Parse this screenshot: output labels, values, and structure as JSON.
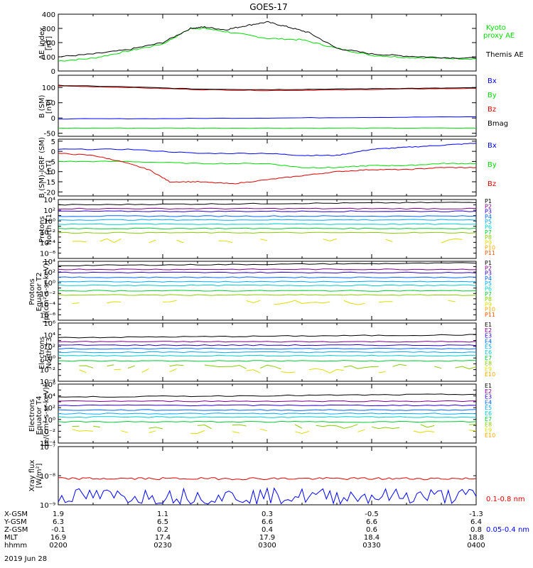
{
  "title": "GOES-17",
  "colors": {
    "black": "#000000",
    "green": "#00dd00",
    "blue": "#0000ff",
    "red": "#dd0000",
    "p_colors": [
      "#000000",
      "#7a0088",
      "#2a00cc",
      "#0066ff",
      "#00aaff",
      "#00cccc",
      "#00cc33",
      "#88cc00",
      "#dddd00",
      "#ffaa00",
      "#ff5500",
      "#dd0000"
    ]
  },
  "chart_data": [
    {
      "type": "line",
      "ylabel": "AE_index [nT]",
      "ylim": [
        0,
        400
      ],
      "yticks": [
        "0",
        "100",
        "200",
        "300",
        "400"
      ],
      "xlim_minutes": [
        0,
        120
      ],
      "series": [
        {
          "name": "Kyoto proxy AE",
          "color": "green",
          "x": [
            0,
            10,
            20,
            30,
            38,
            42,
            50,
            60,
            70,
            80,
            90,
            100,
            110,
            120
          ],
          "values": [
            70,
            90,
            140,
            190,
            300,
            300,
            270,
            230,
            220,
            160,
            110,
            95,
            90,
            85
          ]
        },
        {
          "name": "Themis AE",
          "color": "black",
          "x": [
            0,
            10,
            20,
            30,
            38,
            42,
            48,
            54,
            60,
            66,
            72,
            80,
            90,
            100,
            110,
            120
          ],
          "values": [
            100,
            120,
            150,
            200,
            300,
            310,
            290,
            320,
            345,
            310,
            270,
            160,
            120,
            105,
            95,
            90
          ]
        }
      ]
    },
    {
      "type": "line",
      "ylabel": "B (SM) [nT]",
      "ylim": [
        -60,
        140
      ],
      "yticks": [
        "-50",
        "0",
        "50",
        "100"
      ],
      "series": [
        {
          "name": "Bx",
          "color": "blue",
          "x": [
            0,
            30,
            60,
            90,
            120
          ],
          "values": [
            -3,
            -2,
            0,
            2,
            4
          ]
        },
        {
          "name": "By",
          "color": "green",
          "x": [
            0,
            30,
            60,
            90,
            120
          ],
          "values": [
            -33,
            -33,
            -33,
            -33,
            -33
          ]
        },
        {
          "name": "Bz",
          "color": "red",
          "x": [
            0,
            20,
            40,
            60,
            80,
            100,
            120
          ],
          "values": [
            105,
            100,
            93,
            90,
            92,
            95,
            97
          ]
        },
        {
          "name": "Bmag",
          "color": "black",
          "x": [
            0,
            20,
            40,
            60,
            80,
            100,
            120
          ],
          "values": [
            107,
            102,
            95,
            93,
            95,
            97,
            99
          ]
        }
      ]
    },
    {
      "type": "line",
      "ylabel": "B (SM)-IGRF (SM) [nT]",
      "ylim": [
        -22,
        6
      ],
      "yticks": [
        "-20",
        "-15",
        "-10",
        "-5",
        "0",
        "5"
      ],
      "series": [
        {
          "name": "Bx",
          "color": "blue",
          "x": [
            0,
            20,
            40,
            60,
            70,
            80,
            90,
            100,
            110,
            120
          ],
          "values": [
            1,
            1,
            -1,
            -1,
            -2,
            -2,
            1,
            2,
            3,
            4
          ]
        },
        {
          "name": "By",
          "color": "green",
          "x": [
            0,
            20,
            40,
            60,
            70,
            80,
            90,
            100,
            110,
            120
          ],
          "values": [
            -5,
            -5,
            -6,
            -6,
            -8,
            -8,
            -7,
            -7,
            -6,
            -6
          ]
        },
        {
          "name": "Bz",
          "color": "red",
          "x": [
            0,
            10,
            18,
            26,
            32,
            40,
            50,
            60,
            70,
            80,
            90,
            100,
            110,
            120
          ],
          "values": [
            -1,
            -2,
            -5,
            -9,
            -15,
            -15,
            -16,
            -14,
            -12,
            -10,
            -9,
            -9,
            -8,
            -8
          ]
        }
      ]
    },
    {
      "type": "line",
      "ylabel": "Protons North T1",
      "ylim_log": [
        -7,
        4
      ],
      "yticks": [
        "10⁴",
        "10²",
        "10⁰",
        "10⁻²",
        "10⁻⁴",
        "10⁻⁶"
      ],
      "channels": [
        "P1",
        "P2",
        "P3",
        "P4",
        "P5",
        "P6",
        "P7",
        "P8",
        "P9",
        "P10",
        "P11"
      ],
      "levels_log10": [
        3.0,
        2.3,
        1.8,
        0.9,
        0.2,
        -0.6,
        -1.4,
        -2.2,
        -3.7,
        -99,
        -99
      ]
    },
    {
      "type": "line",
      "ylabel": "Protons Equator T2 [p/(cm²-s-sr-keV)]",
      "ylim_log": [
        -7,
        4
      ],
      "yticks": [
        "10⁴",
        "10²",
        "10⁰",
        "10⁻²",
        "10⁻⁴",
        "10⁻⁶"
      ],
      "channels": [
        "P1",
        "P2",
        "P3",
        "P4",
        "P5",
        "P6",
        "P7",
        "P8",
        "P9",
        "P10",
        "P11"
      ],
      "levels_log10": [
        3.2,
        2.5,
        1.9,
        1.0,
        0.2,
        -0.5,
        -1.5,
        -2.3,
        -3.7,
        -99,
        -99
      ]
    },
    {
      "type": "line",
      "ylabel": "Electrons North T3",
      "ylim_log": [
        -4,
        6
      ],
      "yticks": [
        "10⁶",
        "10⁴",
        "10²",
        "10⁰",
        "10⁻²",
        "10⁻⁴"
      ],
      "channels": [
        "E1",
        "E2",
        "E3",
        "E4",
        "E5",
        "E6",
        "E7",
        "E8",
        "E9",
        "E10"
      ],
      "levels_log10": [
        3.5,
        2.8,
        2.2,
        1.6,
        1.0,
        0.4,
        -0.5,
        -1.5,
        -2.2,
        -99
      ]
    },
    {
      "type": "line",
      "ylabel": "Electrons Equator T4 [e/(cm²-s-sr-keV)]",
      "ylim_log": [
        -4,
        6
      ],
      "yticks": [
        "10⁶",
        "10⁴",
        "10²",
        "10⁰",
        "10⁻²",
        "10⁻⁴"
      ],
      "channels": [
        "E1",
        "E2",
        "E3",
        "E4",
        "E5",
        "E6",
        "E7",
        "E8",
        "E9",
        "E10"
      ],
      "levels_log10": [
        3.8,
        3.1,
        2.4,
        1.6,
        1.0,
        0.4,
        -0.4,
        -1.2,
        -2.0,
        -99
      ]
    },
    {
      "type": "line",
      "ylabel": "Xray flux [W/m²]",
      "ylim_log": [
        -9,
        -7
      ],
      "yticks": [
        "10⁻⁷",
        "10⁻⁸",
        "10⁻⁹"
      ],
      "series": [
        {
          "name": "0.1-0.8 nm",
          "color": "red",
          "mean_log10": -8.1
        },
        {
          "name": "0.05-0.4 nm",
          "color": "blue",
          "mean_log10": -8.7
        }
      ]
    }
  ],
  "axis_table": {
    "rows": [
      {
        "label": "X-GSM",
        "values": [
          "1.9",
          "1.1",
          "0.3",
          "-0.5",
          "-1.3"
        ]
      },
      {
        "label": "Y-GSM",
        "values": [
          "6.3",
          "6.5",
          "6.6",
          "6.6",
          "6.4"
        ]
      },
      {
        "label": "Z-GSM",
        "values": [
          "-0.1",
          "0.2",
          "0.4",
          "0.6",
          "0.8"
        ]
      },
      {
        "label": "MLT",
        "values": [
          "16.9",
          "17.4",
          "17.9",
          "18.4",
          "18.8"
        ]
      },
      {
        "label": "hhmm",
        "values": [
          "0200",
          "0230",
          "0300",
          "0330",
          "0400"
        ]
      }
    ],
    "date": "2019 Jun 28"
  },
  "labels": {
    "ae": [
      "Kyoto",
      "proxy AE",
      "Themis AE"
    ],
    "b_sm": [
      "Bx",
      "By",
      "Bz",
      "Bmag"
    ],
    "b_igrf": [
      "Bx",
      "By",
      "Bz"
    ],
    "xray": [
      "0.1-0.8 nm",
      "0.05-0.4 nm"
    ]
  }
}
